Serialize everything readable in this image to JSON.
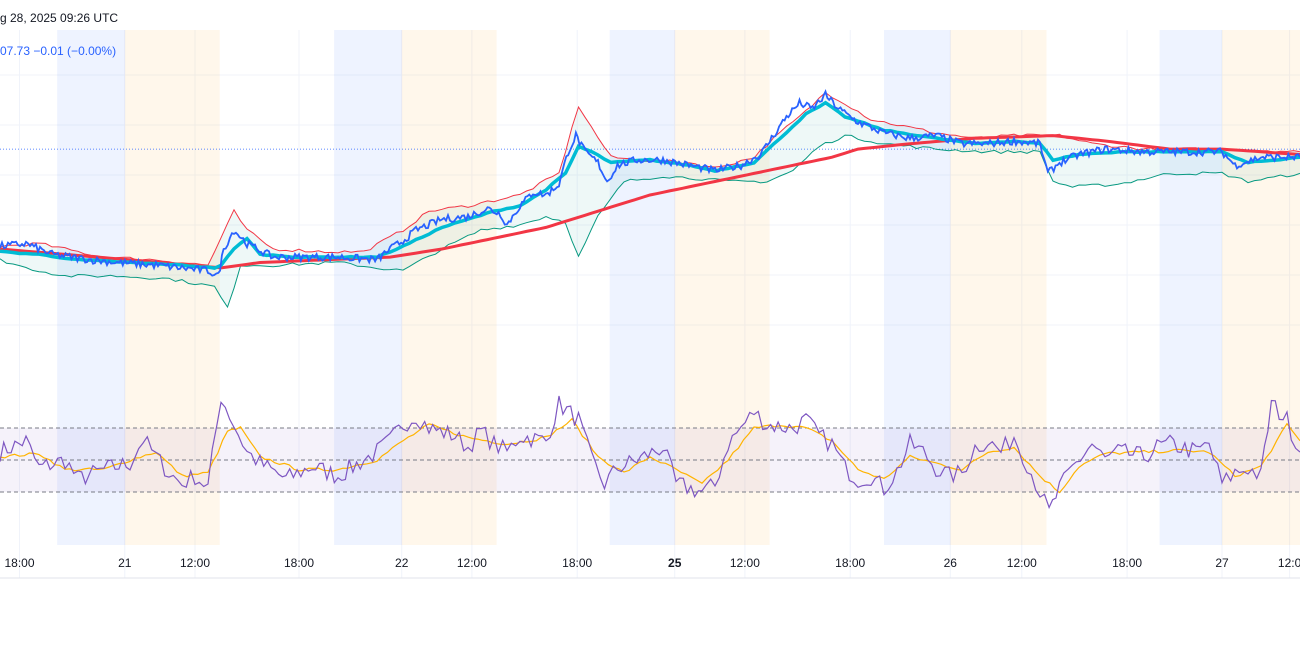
{
  "header": {
    "date_text": "g 28, 2025 09:26 UTC",
    "price_text": "07.73  −0.01 (−0.00%)"
  },
  "colors": {
    "price_line": "#2962ff",
    "fast_ma": "#00bcd4",
    "slow_ma": "#f23645",
    "band_upper": "#f23645",
    "band_lower": "#089981",
    "band_fill": "#26a69a",
    "rsi_line": "#7e57c2",
    "rsi_signal": "#ffb300",
    "rsi_band": "#7e57c2",
    "session_asia": "#2962ff",
    "session_london": "#ff9800",
    "grid": "#f0f3fa"
  },
  "chart_data": {
    "type": "line",
    "x_range": [
      0,
      100
    ],
    "x_ticks": [
      {
        "label": "18:00",
        "x": 1.5,
        "bold": false
      },
      {
        "label": "21",
        "x": 9.6,
        "bold": false
      },
      {
        "label": "12:00",
        "x": 15.0,
        "bold": false
      },
      {
        "label": "18:00",
        "x": 23.0,
        "bold": false
      },
      {
        "label": "22",
        "x": 30.9,
        "bold": false
      },
      {
        "label": "12:00",
        "x": 36.3,
        "bold": false
      },
      {
        "label": "18:00",
        "x": 44.4,
        "bold": false
      },
      {
        "label": "25",
        "x": 51.9,
        "bold": true
      },
      {
        "label": "12:00",
        "x": 57.3,
        "bold": false
      },
      {
        "label": "18:00",
        "x": 65.4,
        "bold": false
      },
      {
        "label": "26",
        "x": 73.1,
        "bold": false
      },
      {
        "label": "12:00",
        "x": 78.6,
        "bold": false
      },
      {
        "label": "18:00",
        "x": 86.7,
        "bold": false
      },
      {
        "label": "27",
        "x": 94.0,
        "bold": false
      },
      {
        "label": "12:0",
        "x": 99.2,
        "bold": false
      }
    ],
    "sessions": [
      {
        "kind": "asia",
        "start": 4.4,
        "end": 9.6
      },
      {
        "kind": "london",
        "start": 9.6,
        "end": 16.9
      },
      {
        "kind": "asia",
        "start": 25.7,
        "end": 30.9
      },
      {
        "kind": "london",
        "start": 30.9,
        "end": 38.2
      },
      {
        "kind": "asia",
        "start": 46.9,
        "end": 51.9
      },
      {
        "kind": "london",
        "start": 51.9,
        "end": 59.2
      },
      {
        "kind": "asia",
        "start": 68.0,
        "end": 73.1
      },
      {
        "kind": "london",
        "start": 73.1,
        "end": 80.5
      },
      {
        "kind": "asia",
        "start": 89.2,
        "end": 94.0
      },
      {
        "kind": "london",
        "start": 94.0,
        "end": 100
      }
    ],
    "price_pane": {
      "y_range": [
        0,
        100
      ],
      "last_price_level": 67,
      "price_keypoints": [
        [
          0,
          31
        ],
        [
          2,
          32
        ],
        [
          4,
          28
        ],
        [
          7,
          26
        ],
        [
          9,
          25
        ],
        [
          12,
          24
        ],
        [
          14,
          23
        ],
        [
          16,
          22
        ],
        [
          16.8,
          20
        ],
        [
          17.2,
          30
        ],
        [
          18,
          37
        ],
        [
          19,
          32
        ],
        [
          21,
          27
        ],
        [
          23,
          27
        ],
        [
          26,
          27
        ],
        [
          29,
          26
        ],
        [
          30,
          30
        ],
        [
          31,
          33
        ],
        [
          32,
          37
        ],
        [
          34,
          41
        ],
        [
          36,
          42
        ],
        [
          37.5,
          45
        ],
        [
          38.5,
          43
        ],
        [
          39,
          39
        ],
        [
          40,
          46
        ],
        [
          41,
          51
        ],
        [
          42,
          50
        ],
        [
          43,
          54
        ],
        [
          43.7,
          66
        ],
        [
          44.3,
          72
        ],
        [
          45,
          66
        ],
        [
          46,
          62
        ],
        [
          46.7,
          55
        ],
        [
          47.5,
          61
        ],
        [
          49,
          63
        ],
        [
          51,
          63
        ],
        [
          53,
          61
        ],
        [
          55,
          59
        ],
        [
          57,
          61
        ],
        [
          58.5,
          65
        ],
        [
          59.5,
          72
        ],
        [
          60.5,
          79
        ],
        [
          61.5,
          84
        ],
        [
          62.5,
          82
        ],
        [
          63.5,
          87
        ],
        [
          64.5,
          82
        ],
        [
          66,
          77
        ],
        [
          68,
          73
        ],
        [
          70,
          71
        ],
        [
          72,
          72
        ],
        [
          74,
          69
        ],
        [
          76,
          69
        ],
        [
          78,
          70
        ],
        [
          80,
          69
        ],
        [
          80.6,
          58
        ],
        [
          81.5,
          62
        ],
        [
          83,
          65
        ],
        [
          85,
          67
        ],
        [
          88,
          66
        ],
        [
          91,
          66
        ],
        [
          94,
          66
        ],
        [
          95,
          61
        ],
        [
          97,
          64
        ],
        [
          100,
          64
        ]
      ],
      "fast_ma_keypoints": [
        [
          0,
          29
        ],
        [
          3,
          28
        ],
        [
          6,
          26
        ],
        [
          10,
          25
        ],
        [
          14,
          24
        ],
        [
          16.5,
          23
        ],
        [
          17,
          24
        ],
        [
          18,
          30
        ],
        [
          19,
          34
        ],
        [
          20,
          28
        ],
        [
          23,
          27
        ],
        [
          29,
          27
        ],
        [
          31,
          31
        ],
        [
          34,
          38
        ],
        [
          38,
          44
        ],
        [
          40,
          46
        ],
        [
          42,
          52
        ],
        [
          43.5,
          58
        ],
        [
          44.5,
          68
        ],
        [
          45.5,
          66
        ],
        [
          47,
          62
        ],
        [
          50,
          63
        ],
        [
          53,
          61
        ],
        [
          55,
          59
        ],
        [
          58,
          62
        ],
        [
          60,
          71
        ],
        [
          62,
          80
        ],
        [
          63.5,
          84
        ],
        [
          65,
          79
        ],
        [
          68,
          74
        ],
        [
          72,
          71
        ],
        [
          75,
          69
        ],
        [
          78,
          70
        ],
        [
          80,
          69
        ],
        [
          81,
          63
        ],
        [
          83,
          65
        ],
        [
          86,
          66
        ],
        [
          90,
          66
        ],
        [
          94,
          66
        ],
        [
          96,
          62
        ],
        [
          100,
          64
        ]
      ],
      "slow_ma_keypoints": [
        [
          0,
          30
        ],
        [
          10,
          26
        ],
        [
          17,
          23
        ],
        [
          20,
          25
        ],
        [
          25,
          26
        ],
        [
          30,
          27
        ],
        [
          34,
          30
        ],
        [
          38,
          34
        ],
        [
          42,
          38
        ],
        [
          46,
          44
        ],
        [
          50,
          50
        ],
        [
          55,
          55
        ],
        [
          60,
          60
        ],
        [
          64,
          64
        ],
        [
          66,
          67
        ],
        [
          70,
          69
        ],
        [
          75,
          71
        ],
        [
          78,
          71.5
        ],
        [
          81,
          72
        ],
        [
          85,
          70
        ],
        [
          90,
          67
        ],
        [
          94,
          67
        ],
        [
          100,
          65
        ]
      ],
      "upper_band_keypoints": [
        [
          0,
          31
        ],
        [
          3,
          32
        ],
        [
          8,
          27
        ],
        [
          12,
          26
        ],
        [
          16,
          24
        ],
        [
          18,
          44
        ],
        [
          19,
          37
        ],
        [
          21,
          30
        ],
        [
          25,
          29
        ],
        [
          28,
          29
        ],
        [
          31,
          37
        ],
        [
          33,
          44
        ],
        [
          36,
          46
        ],
        [
          38,
          48
        ],
        [
          40,
          50
        ],
        [
          43,
          58
        ],
        [
          44.5,
          83
        ],
        [
          45.5,
          75
        ],
        [
          47,
          64
        ],
        [
          49,
          63
        ],
        [
          53,
          62
        ],
        [
          55,
          60
        ],
        [
          58,
          64
        ],
        [
          60,
          73
        ],
        [
          62,
          81
        ],
        [
          63.5,
          88
        ],
        [
          65,
          84
        ],
        [
          67,
          78
        ],
        [
          70,
          75
        ],
        [
          72,
          73
        ],
        [
          75,
          71
        ],
        [
          78,
          72
        ],
        [
          80,
          72
        ],
        [
          81.5,
          72
        ],
        [
          84,
          69
        ],
        [
          88,
          67
        ],
        [
          92,
          67
        ],
        [
          95,
          67
        ],
        [
          100,
          66
        ]
      ],
      "lower_band_keypoints": [
        [
          0,
          26
        ],
        [
          2,
          23
        ],
        [
          5,
          20
        ],
        [
          9,
          20
        ],
        [
          13,
          19
        ],
        [
          16.5,
          16
        ],
        [
          17.5,
          8
        ],
        [
          18.5,
          24
        ],
        [
          21,
          24
        ],
        [
          26,
          25
        ],
        [
          29,
          23
        ],
        [
          31,
          22
        ],
        [
          34,
          30
        ],
        [
          37,
          37
        ],
        [
          40,
          39
        ],
        [
          42,
          42
        ],
        [
          43.5,
          40
        ],
        [
          44.5,
          27
        ],
        [
          46,
          42
        ],
        [
          48,
          55
        ],
        [
          51,
          57
        ],
        [
          54,
          56
        ],
        [
          56,
          55
        ],
        [
          59,
          55
        ],
        [
          61,
          59
        ],
        [
          63,
          68
        ],
        [
          65,
          72
        ],
        [
          68,
          69
        ],
        [
          72,
          67
        ],
        [
          76,
          66
        ],
        [
          80,
          66
        ],
        [
          81,
          55
        ],
        [
          82.5,
          53
        ],
        [
          86,
          54
        ],
        [
          90,
          58
        ],
        [
          94,
          58
        ],
        [
          96,
          55
        ],
        [
          100,
          58
        ]
      ]
    },
    "rsi_pane": {
      "y_range": [
        0,
        100
      ],
      "upper_level": 70,
      "middle_level": 50,
      "lower_level": 30,
      "rsi_keypoints": [
        [
          0,
          55
        ],
        [
          2,
          62
        ],
        [
          3,
          45
        ],
        [
          5,
          50
        ],
        [
          6,
          38
        ],
        [
          8,
          44
        ],
        [
          10,
          48
        ],
        [
          11,
          63
        ],
        [
          12,
          52
        ],
        [
          13,
          42
        ],
        [
          14,
          35
        ],
        [
          15,
          40
        ],
        [
          16,
          33
        ],
        [
          17,
          90
        ],
        [
          18,
          72
        ],
        [
          19,
          55
        ],
        [
          20,
          48
        ],
        [
          22,
          38
        ],
        [
          24,
          46
        ],
        [
          26,
          40
        ],
        [
          28,
          50
        ],
        [
          29,
          55
        ],
        [
          30,
          62
        ],
        [
          31,
          72
        ],
        [
          32,
          78
        ],
        [
          33,
          70
        ],
        [
          35,
          65
        ],
        [
          36,
          58
        ],
        [
          37,
          68
        ],
        [
          38,
          60
        ],
        [
          39,
          55
        ],
        [
          40,
          65
        ],
        [
          42,
          62
        ],
        [
          43,
          85
        ],
        [
          44.5,
          75
        ],
        [
          45.5,
          50
        ],
        [
          46.5,
          35
        ],
        [
          47.5,
          45
        ],
        [
          49,
          50
        ],
        [
          51,
          58
        ],
        [
          52,
          35
        ],
        [
          54,
          30
        ],
        [
          55,
          34
        ],
        [
          56,
          60
        ],
        [
          57,
          70
        ],
        [
          58,
          80
        ],
        [
          59,
          72
        ],
        [
          61,
          70
        ],
        [
          62,
          75
        ],
        [
          63,
          65
        ],
        [
          64,
          60
        ],
        [
          65,
          45
        ],
        [
          66,
          38
        ],
        [
          67,
          40
        ],
        [
          68,
          32
        ],
        [
          69,
          43
        ],
        [
          70,
          60
        ],
        [
          71,
          55
        ],
        [
          72,
          45
        ],
        [
          73,
          40
        ],
        [
          74,
          42
        ],
        [
          75,
          58
        ],
        [
          76,
          62
        ],
        [
          77,
          55
        ],
        [
          78,
          65
        ],
        [
          79,
          48
        ],
        [
          80,
          30
        ],
        [
          80.7,
          17
        ],
        [
          81.5,
          32
        ],
        [
          82.5,
          45
        ],
        [
          84,
          60
        ],
        [
          85,
          50
        ],
        [
          86,
          55
        ],
        [
          88,
          52
        ],
        [
          89,
          58
        ],
        [
          90,
          60
        ],
        [
          92,
          55
        ],
        [
          93,
          60
        ],
        [
          94,
          35
        ],
        [
          95,
          42
        ],
        [
          96,
          45
        ],
        [
          97,
          40
        ],
        [
          97.8,
          85
        ],
        [
          99,
          75
        ],
        [
          100,
          55
        ]
      ],
      "signal_keypoints": [
        [
          0,
          52
        ],
        [
          3,
          54
        ],
        [
          5,
          44
        ],
        [
          8,
          44
        ],
        [
          10,
          50
        ],
        [
          12,
          55
        ],
        [
          14,
          40
        ],
        [
          16,
          42
        ],
        [
          17.5,
          68
        ],
        [
          18.5,
          70
        ],
        [
          20,
          52
        ],
        [
          23,
          44
        ],
        [
          26,
          44
        ],
        [
          29,
          50
        ],
        [
          31,
          62
        ],
        [
          33,
          72
        ],
        [
          36,
          64
        ],
        [
          39,
          60
        ],
        [
          42,
          64
        ],
        [
          44,
          75
        ],
        [
          46,
          52
        ],
        [
          48,
          42
        ],
        [
          50,
          52
        ],
        [
          52,
          44
        ],
        [
          54,
          35
        ],
        [
          56,
          50
        ],
        [
          58,
          70
        ],
        [
          60,
          72
        ],
        [
          62,
          70
        ],
        [
          64,
          62
        ],
        [
          66,
          44
        ],
        [
          68,
          38
        ],
        [
          70,
          52
        ],
        [
          72,
          48
        ],
        [
          74,
          44
        ],
        [
          76,
          55
        ],
        [
          78,
          58
        ],
        [
          80,
          40
        ],
        [
          81.5,
          30
        ],
        [
          83,
          46
        ],
        [
          85,
          54
        ],
        [
          88,
          55
        ],
        [
          91,
          56
        ],
        [
          93,
          55
        ],
        [
          95,
          40
        ],
        [
          97,
          46
        ],
        [
          99,
          72
        ],
        [
          100,
          62
        ]
      ]
    }
  }
}
